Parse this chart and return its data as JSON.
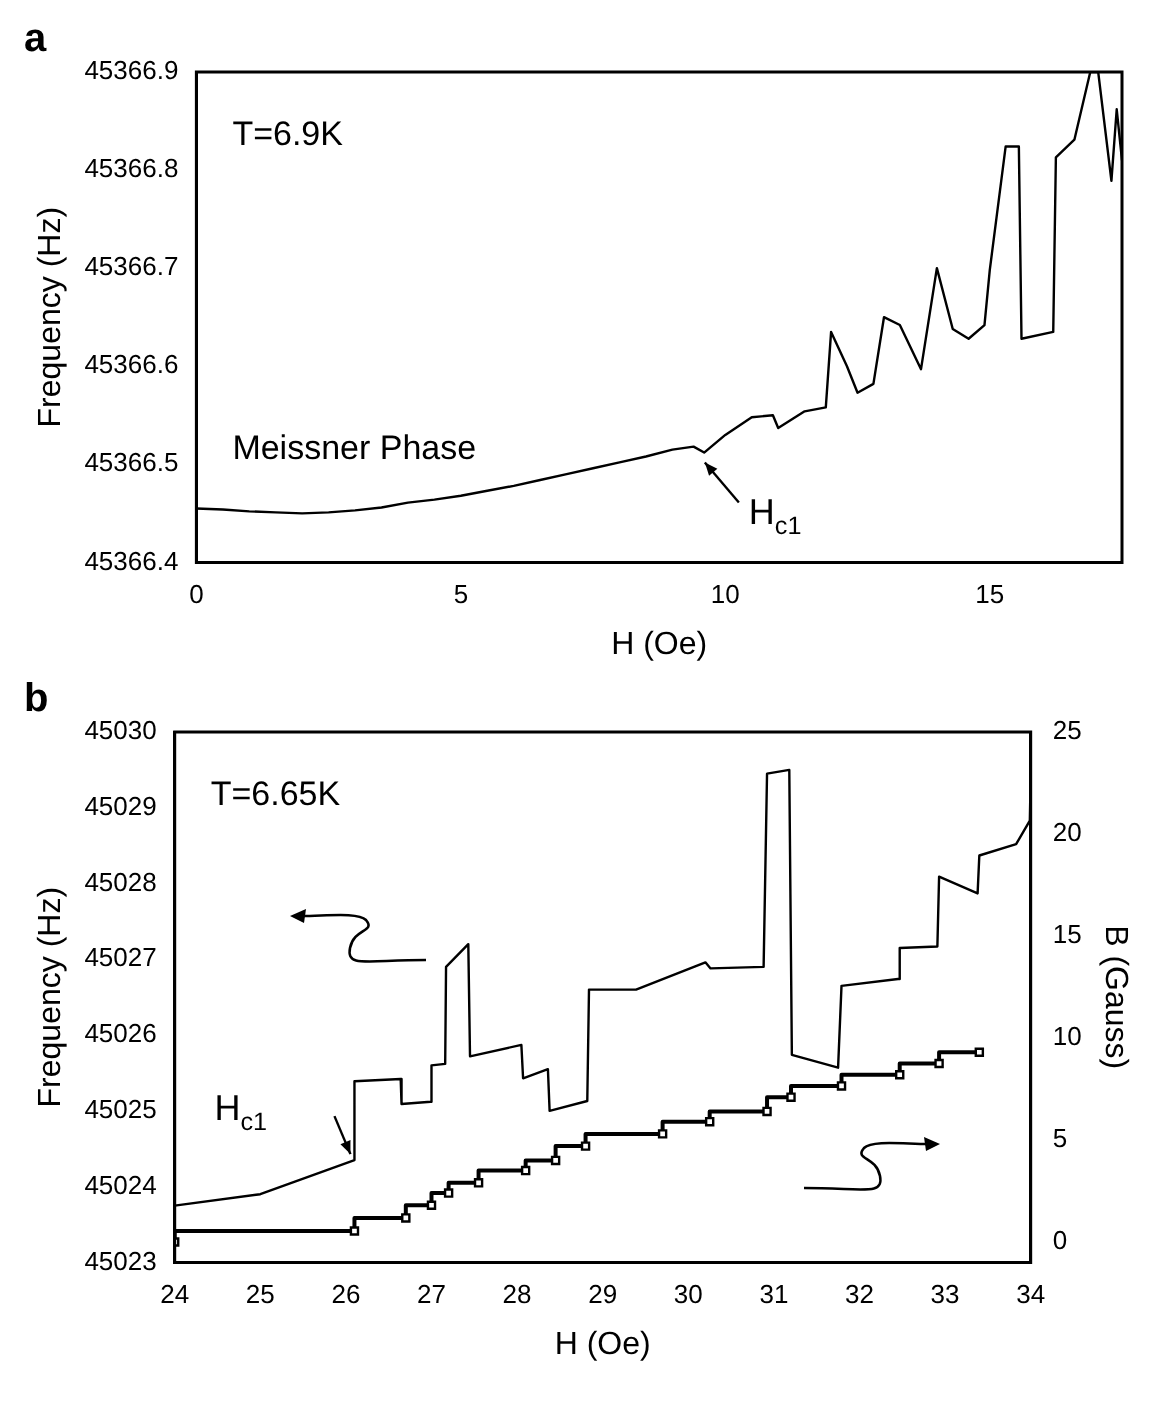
{
  "chart_data": [
    {
      "type": "line",
      "title": "a",
      "xlabel": "H (Oe)",
      "ylabel": "Frequency (Hz)",
      "xlim": [
        0,
        17.5
      ],
      "xticks": [
        0,
        5,
        10,
        15
      ],
      "ylim": [
        45366.4,
        45366.9
      ],
      "yticks": [
        45366.4,
        45366.5,
        45366.6,
        45366.7,
        45366.8,
        45366.9
      ],
      "grid": false,
      "legend": false,
      "annotations": [
        "T=6.9K",
        "Meissner Phase",
        {
          "text": "H$_{c1}$",
          "x": 9.5,
          "y": 45366.51
        }
      ],
      "series": [
        {
          "color": "#000000",
          "marker": "none",
          "x": [
            0,
            0.5,
            1,
            1.5,
            2,
            2.5,
            3,
            3.5,
            4,
            4.5,
            5,
            5.5,
            6,
            6.5,
            7,
            7.5,
            8,
            8.5,
            9,
            9.4,
            9.6,
            10,
            10.5,
            10.9,
            11,
            11.5,
            11.9,
            12,
            12.3,
            12.5,
            12.8,
            13,
            13.3,
            13.7,
            14,
            14.3,
            14.6,
            14.9,
            15,
            15.3,
            15.55,
            15.6,
            16.2,
            16.25,
            16.6,
            16.9,
            17.05,
            17.3,
            17.4,
            17.5
          ],
          "values": [
            45366.455,
            45366.454,
            45366.452,
            45366.451,
            45366.45,
            45366.451,
            45366.453,
            45366.456,
            45366.461,
            45366.464,
            45366.468,
            45366.473,
            45366.478,
            45366.484,
            45366.49,
            45366.496,
            45366.502,
            45366.508,
            45366.515,
            45366.518,
            45366.512,
            45366.53,
            45366.548,
            45366.55,
            45366.537,
            45366.554,
            45366.558,
            45366.635,
            45366.6,
            45366.573,
            45366.582,
            45366.65,
            45366.642,
            45366.597,
            45366.7,
            45366.638,
            45366.628,
            45366.642,
            45366.698,
            45366.824,
            45366.824,
            45366.628,
            45366.635,
            45366.813,
            45366.831,
            45366.9,
            45366.9,
            45366.789,
            45366.862,
            45366.81
          ]
        }
      ]
    },
    {
      "type": "line",
      "title": "b",
      "xlabel": "H (Oe)",
      "ylabel": "Frequency (Hz)",
      "y2label": "B (Gauss)",
      "xlim": [
        24,
        34
      ],
      "xticks": [
        24,
        25,
        26,
        27,
        28,
        29,
        30,
        31,
        32,
        33,
        34
      ],
      "ylim": [
        45023,
        45030
      ],
      "yticks": [
        45023,
        45024,
        45025,
        45026,
        45027,
        45028,
        45029,
        45030
      ],
      "y2lim": [
        -1,
        25
      ],
      "y2ticks": [
        0,
        5,
        10,
        15,
        20,
        25
      ],
      "grid": false,
      "legend": false,
      "annotations": [
        "T=6.65K",
        {
          "text": "H$_{c1}$",
          "x": 26.1,
          "y": 45024.35
        }
      ],
      "series": [
        {
          "color": "#000000",
          "marker": "none",
          "x": [
            24,
            25,
            26.1,
            26.1,
            26.64,
            26.65,
            26.99,
            27.0,
            27.16,
            27.17,
            27.43,
            27.45,
            28.05,
            28.07,
            28.36,
            28.38,
            28.82,
            28.84,
            29.39,
            30.2,
            30.26,
            30.88,
            30.92,
            31.18,
            31.21,
            31.75,
            31.79,
            32.45,
            32.47,
            32.91,
            32.93,
            33.38,
            33.4,
            33.83,
            33.99,
            34
          ],
          "values": [
            45023.75,
            45023.9,
            45024.35,
            45025.39,
            45025.42,
            45025.09,
            45025.12,
            45025.6,
            45025.62,
            45026.9,
            45027.2,
            45025.72,
            45025.87,
            45025.43,
            45025.55,
            45025.0,
            45025.13,
            45026.6,
            45026.6,
            45026.96,
            45026.88,
            45026.9,
            45029.45,
            45029.5,
            45025.74,
            45025.57,
            45026.65,
            45026.74,
            45027.15,
            45027.17,
            45028.09,
            45027.87,
            45028.37,
            45028.52,
            45028.83,
            45029.4
          ]
        },
        {
          "type": "step",
          "axis": "y2",
          "color": "#000000",
          "marker": "square",
          "x": [
            24,
            26.1,
            26.7,
            27.0,
            27.2,
            27.55,
            28.1,
            28.45,
            28.8,
            29.7,
            30.25,
            30.92,
            31.2,
            31.79,
            32.47,
            32.93,
            33.4
          ],
          "values": [
            0,
            0.54,
            1.18,
            1.8,
            2.4,
            2.9,
            3.5,
            4.0,
            4.7,
            5.3,
            5.9,
            6.4,
            7.1,
            7.65,
            8.2,
            8.75,
            9.3
          ]
        }
      ]
    }
  ]
}
